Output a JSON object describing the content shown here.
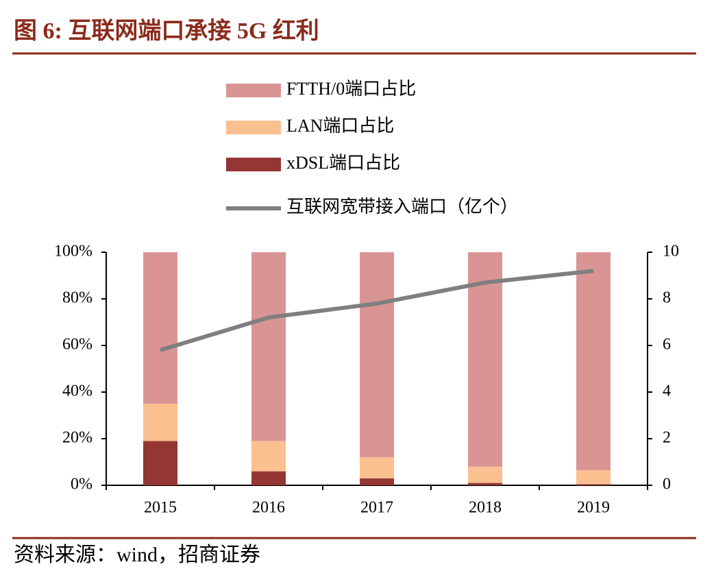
{
  "chart_data": {
    "type": "bar",
    "stacked": true,
    "title": "图 6:  互联网端口承接 5G 红利",
    "source": "资料来源：wind，招商证券",
    "categories": [
      "2015",
      "2016",
      "2017",
      "2018",
      "2019"
    ],
    "series": [
      {
        "name": "FTTH/0端口占比",
        "type": "bar",
        "color": "#d99594",
        "values": [
          65,
          81,
          88,
          92,
          93.5
        ]
      },
      {
        "name": "LAN端口占比",
        "type": "bar",
        "color": "#fac090",
        "values": [
          16,
          13,
          9,
          7,
          6
        ]
      },
      {
        "name": "xDSL端口占比",
        "type": "bar",
        "color": "#943634",
        "values": [
          19,
          6,
          3,
          1,
          0.5
        ]
      },
      {
        "name": "互联网宽带接入端口（亿个）",
        "type": "line",
        "axis": "y2",
        "color": "#7f7f7f",
        "values": [
          5.8,
          7.2,
          7.8,
          8.7,
          9.2
        ]
      }
    ],
    "ylim": [
      0,
      100
    ],
    "yticks": [
      {
        "value": 0,
        "label": "0%"
      },
      {
        "value": 20,
        "label": "20%"
      },
      {
        "value": 40,
        "label": "40%"
      },
      {
        "value": 60,
        "label": "60%"
      },
      {
        "value": 80,
        "label": "80%"
      },
      {
        "value": 100,
        "label": "100%"
      }
    ],
    "y2lim": [
      0,
      10
    ],
    "y2ticks": [
      0,
      2,
      4,
      6,
      8,
      10
    ],
    "legend": "top"
  }
}
